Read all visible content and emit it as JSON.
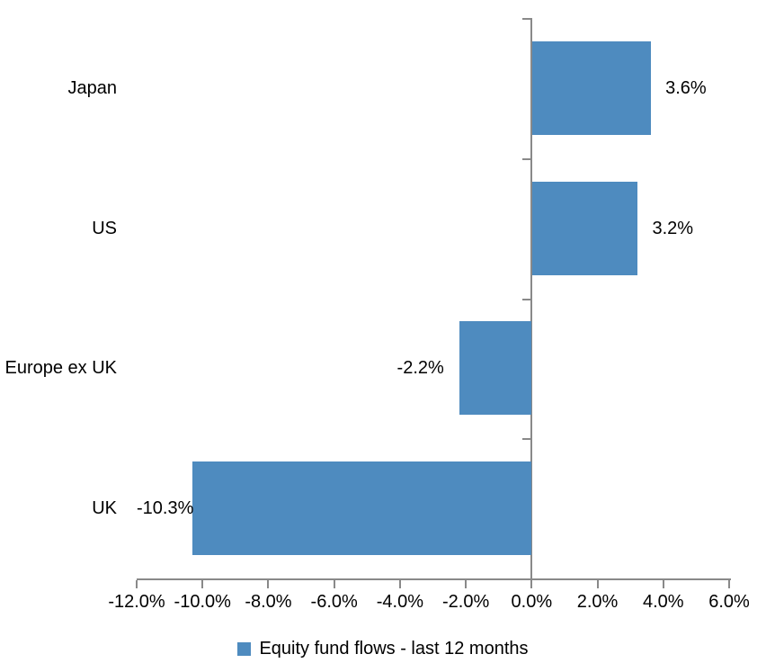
{
  "chart_data": {
    "type": "bar",
    "orientation": "horizontal",
    "title": "",
    "categories": [
      "Japan",
      "US",
      "Europe ex UK",
      "UK"
    ],
    "values": [
      3.6,
      3.2,
      -2.2,
      -10.3
    ],
    "data_labels": [
      "3.6%",
      "3.2%",
      "-2.2%",
      "-10.3%"
    ],
    "series": [
      {
        "name": "Equity fund flows - last 12 months",
        "values": [
          3.6,
          3.2,
          -2.2,
          -10.3
        ]
      }
    ],
    "x_axis": {
      "min": -12,
      "max": 6,
      "tick_step": 2,
      "tick_labels": [
        "-12.0%",
        "-10.0%",
        "-8.0%",
        "-6.0%",
        "-4.0%",
        "-2.0%",
        "0.0%",
        "2.0%",
        "4.0%",
        "6.0%"
      ]
    },
    "grid": false,
    "legend": {
      "position": "bottom",
      "label": "Equity fund flows - last 12 months"
    },
    "colors": {
      "bar": "#4E8BBF",
      "axis": "#898989",
      "text": "#000000",
      "background": "#FFFFFF"
    }
  }
}
